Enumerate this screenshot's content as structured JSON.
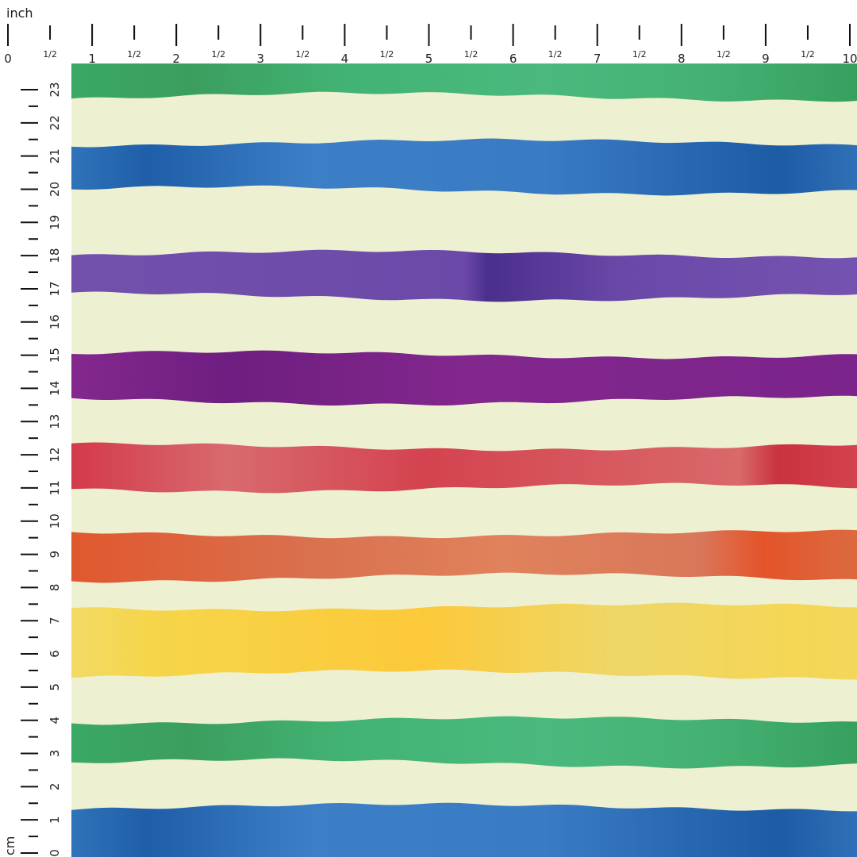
{
  "top_ruler": {
    "unit": "inch",
    "labels": [
      "0",
      "1/2",
      "1",
      "1/2",
      "2",
      "1/2",
      "3",
      "1/2",
      "4",
      "1/2",
      "5",
      "1/2",
      "6",
      "1/2",
      "7",
      "1/2",
      "8",
      "1/2",
      "9",
      "1/2",
      "10"
    ]
  },
  "left_ruler": {
    "unit": "cm",
    "labels": [
      "0",
      "1",
      "2",
      "3",
      "4",
      "5",
      "6",
      "7",
      "8",
      "9",
      "10",
      "11",
      "12",
      "13",
      "14",
      "15",
      "16",
      "17",
      "18",
      "19",
      "20",
      "21",
      "22",
      "23"
    ]
  }
}
